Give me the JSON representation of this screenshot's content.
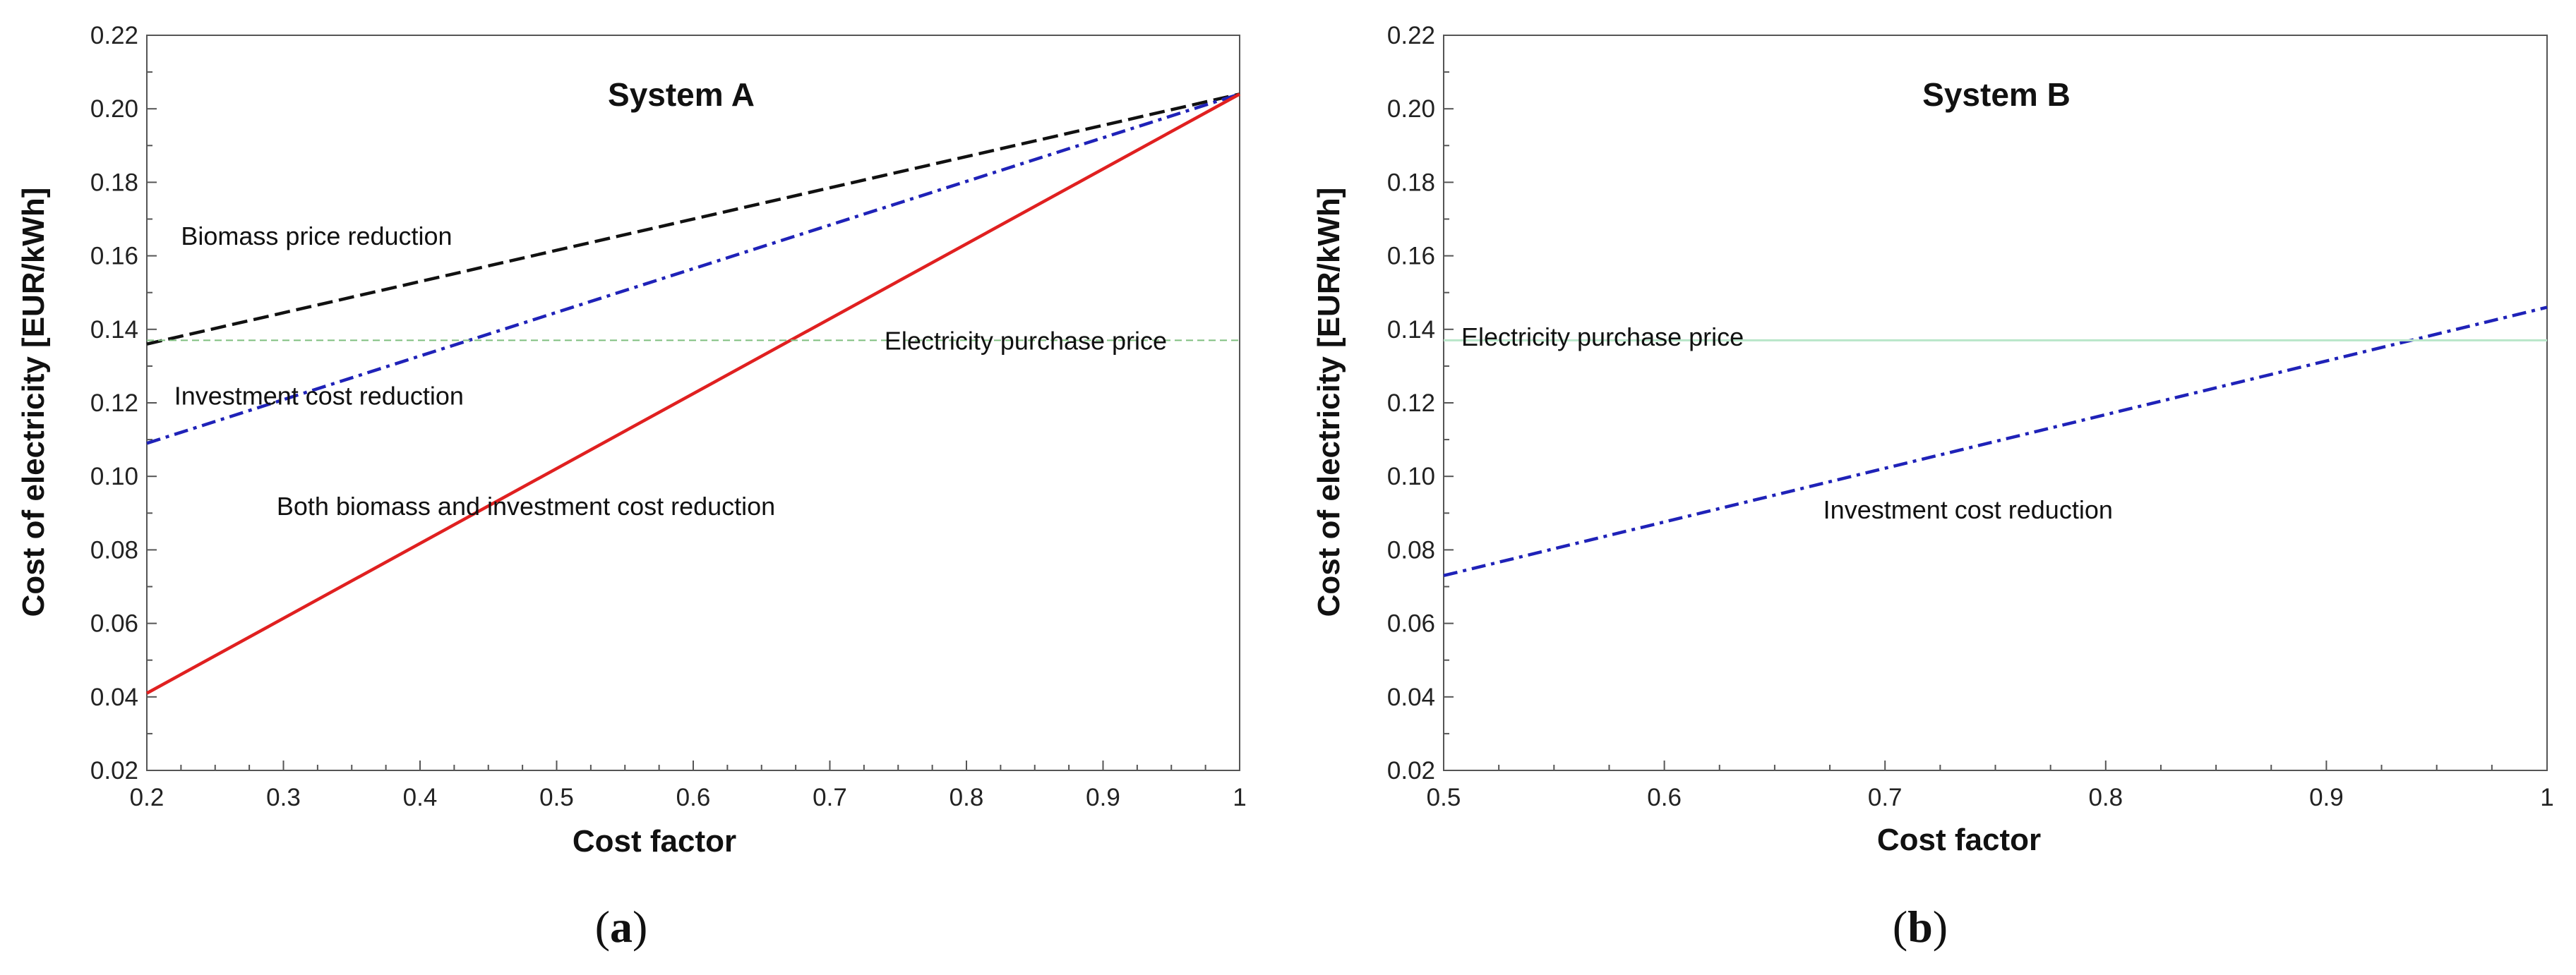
{
  "chart_data": [
    {
      "type": "line",
      "id": "a",
      "caption_letter": "a",
      "title": "System A",
      "xlabel": "Cost factor",
      "ylabel": "Cost of electricity  [EUR/kWh]",
      "xlim": [
        0.2,
        1.0
      ],
      "ylim": [
        0.02,
        0.22
      ],
      "xticks": [
        0.2,
        0.3,
        0.4,
        0.5,
        0.6,
        0.7,
        0.8,
        0.9,
        1.0
      ],
      "xtick_labels": [
        "0.2",
        "0.3",
        "0.4",
        "0.5",
        "0.6",
        "0.7",
        "0.8",
        "0.9",
        "1"
      ],
      "yticks": [
        0.02,
        0.04,
        0.06,
        0.08,
        0.1,
        0.12,
        0.14,
        0.16,
        0.18,
        0.2,
        0.22
      ],
      "ytick_labels": [
        "0.02",
        "0.04",
        "0.06",
        "0.08",
        "0.10",
        "0.12",
        "0.14",
        "0.16",
        "0.18",
        "0.20",
        "0.22"
      ],
      "series": [
        {
          "name": "Biomass price reduction",
          "x": [
            0.2,
            1.0
          ],
          "y": [
            0.136,
            0.204
          ],
          "color": "#111111",
          "style": "dashed"
        },
        {
          "name": "Investment cost reduction",
          "x": [
            0.2,
            1.0
          ],
          "y": [
            0.109,
            0.204
          ],
          "color": "#1f22b8",
          "style": "dashdot"
        },
        {
          "name": "Both biomass and investment cost reduction",
          "x": [
            0.2,
            1.0
          ],
          "y": [
            0.041,
            0.204
          ],
          "color": "#e02020",
          "style": "solid"
        },
        {
          "name": "Electricity purchase price",
          "x": [
            0.2,
            1.0
          ],
          "y": [
            0.137,
            0.137
          ],
          "color": "#7fbf7f",
          "style": "thin-dashed"
        }
      ],
      "annotations": [
        {
          "text": "Biomass price reduction",
          "x": 0.225,
          "y": 0.163
        },
        {
          "text": "Investment cost reduction",
          "x": 0.22,
          "y": 0.1195
        },
        {
          "text": "Both biomass and investment cost reduction",
          "x": 0.295,
          "y": 0.0895
        },
        {
          "text": "Electricity purchase price",
          "x": 0.74,
          "y": 0.1345
        }
      ]
    },
    {
      "type": "line",
      "id": "b",
      "caption_letter": "b",
      "title": "System B",
      "xlabel": "Cost factor",
      "ylabel": "Cost of electricity  [EUR/kWh]",
      "xlim": [
        0.5,
        1.0
      ],
      "ylim": [
        0.02,
        0.22
      ],
      "xticks": [
        0.5,
        0.6,
        0.7,
        0.8,
        0.9,
        1.0
      ],
      "xtick_labels": [
        "0.5",
        "0.6",
        "0.7",
        "0.8",
        "0.9",
        "1"
      ],
      "yticks": [
        0.02,
        0.04,
        0.06,
        0.08,
        0.1,
        0.12,
        0.14,
        0.16,
        0.18,
        0.2,
        0.22
      ],
      "ytick_labels": [
        "0.02",
        "0.04",
        "0.06",
        "0.08",
        "0.10",
        "0.12",
        "0.14",
        "0.16",
        "0.18",
        "0.20",
        "0.22"
      ],
      "series": [
        {
          "name": "Investment cost reduction",
          "x": [
            0.5,
            1.0
          ],
          "y": [
            0.073,
            0.146
          ],
          "color": "#1f22b8",
          "style": "dashdot"
        },
        {
          "name": "Electricity purchase price",
          "x": [
            0.5,
            1.0
          ],
          "y": [
            0.137,
            0.137
          ],
          "color": "#b9e6c9",
          "style": "thin-solid"
        }
      ],
      "annotations": [
        {
          "text": "Electricity purchase price",
          "x": 0.508,
          "y": 0.1355
        },
        {
          "text": "Investment cost reduction",
          "x": 0.672,
          "y": 0.0885
        }
      ]
    }
  ]
}
